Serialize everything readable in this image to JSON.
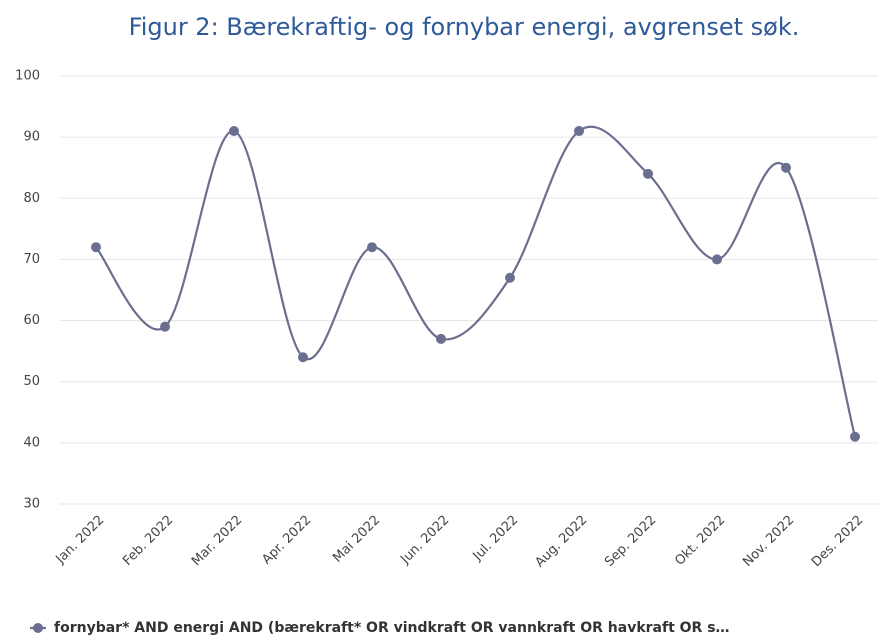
{
  "chart_data": {
    "type": "line",
    "title": "Figur 2: Bærekraftig- og fornybar energi, avgrenset søk.",
    "categories": [
      "Jan. 2022",
      "Feb. 2022",
      "Mar. 2022",
      "Apr. 2022",
      "Mai 2022",
      "Jun. 2022",
      "Jul. 2022",
      "Aug. 2022",
      "Sep. 2022",
      "Okt. 2022",
      "Nov. 2022",
      "Des. 2022"
    ],
    "series": [
      {
        "name": "fornybar* AND energi AND (bærekraft* OR vindkraft OR vannkraft OR havkraft OR s…",
        "color": "#6b6f8f",
        "values": [
          72,
          59,
          91,
          54,
          72,
          57,
          67,
          91,
          84,
          70,
          85,
          41
        ]
      }
    ],
    "ylim": [
      30,
      100
    ],
    "yticks": [
      30,
      40,
      50,
      60,
      70,
      80,
      90,
      100
    ],
    "grid": true,
    "legend": "bottom"
  }
}
